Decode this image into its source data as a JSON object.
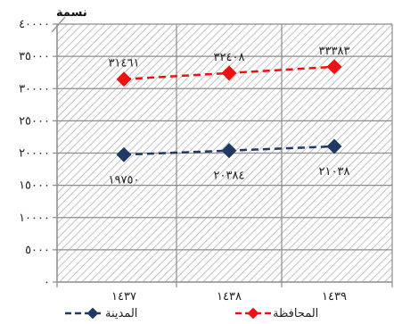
{
  "chart_data": {
    "type": "line",
    "categories": [
      "١٤٣٧",
      "١٤٣٨",
      "١٤٣٩"
    ],
    "series": [
      {
        "name": "المحافظة",
        "values": [
          31461,
          32408,
          33383
        ],
        "labels": [
          "٣١٤٦١",
          "٣٢٤٠٨",
          "٣٣٣٨٣"
        ],
        "color": "#ee1111",
        "style": "dashed"
      },
      {
        "name": "المدينة",
        "values": [
          19750,
          20384,
          21038
        ],
        "labels": [
          "١٩٧٥٠",
          "٢٠٣٨٤",
          "٢١٠٣٨"
        ],
        "color": "#1f3864",
        "style": "dashed"
      }
    ],
    "y_ticks": [
      0,
      5000,
      10000,
      15000,
      20000,
      25000,
      30000,
      35000,
      40000
    ],
    "y_tick_labels": [
      "٠",
      "٥٠٠٠",
      "١٠٠٠٠",
      "١٥٠٠٠",
      "٢٠٠٠٠",
      "٢٥٠٠٠",
      "٣٠٠٠٠",
      "٣٥٠٠٠",
      "٤٠٠٠٠"
    ],
    "ylim": [
      0,
      40000
    ],
    "ylabel": "نسمة",
    "grid": true,
    "legend_position": "bottom"
  }
}
